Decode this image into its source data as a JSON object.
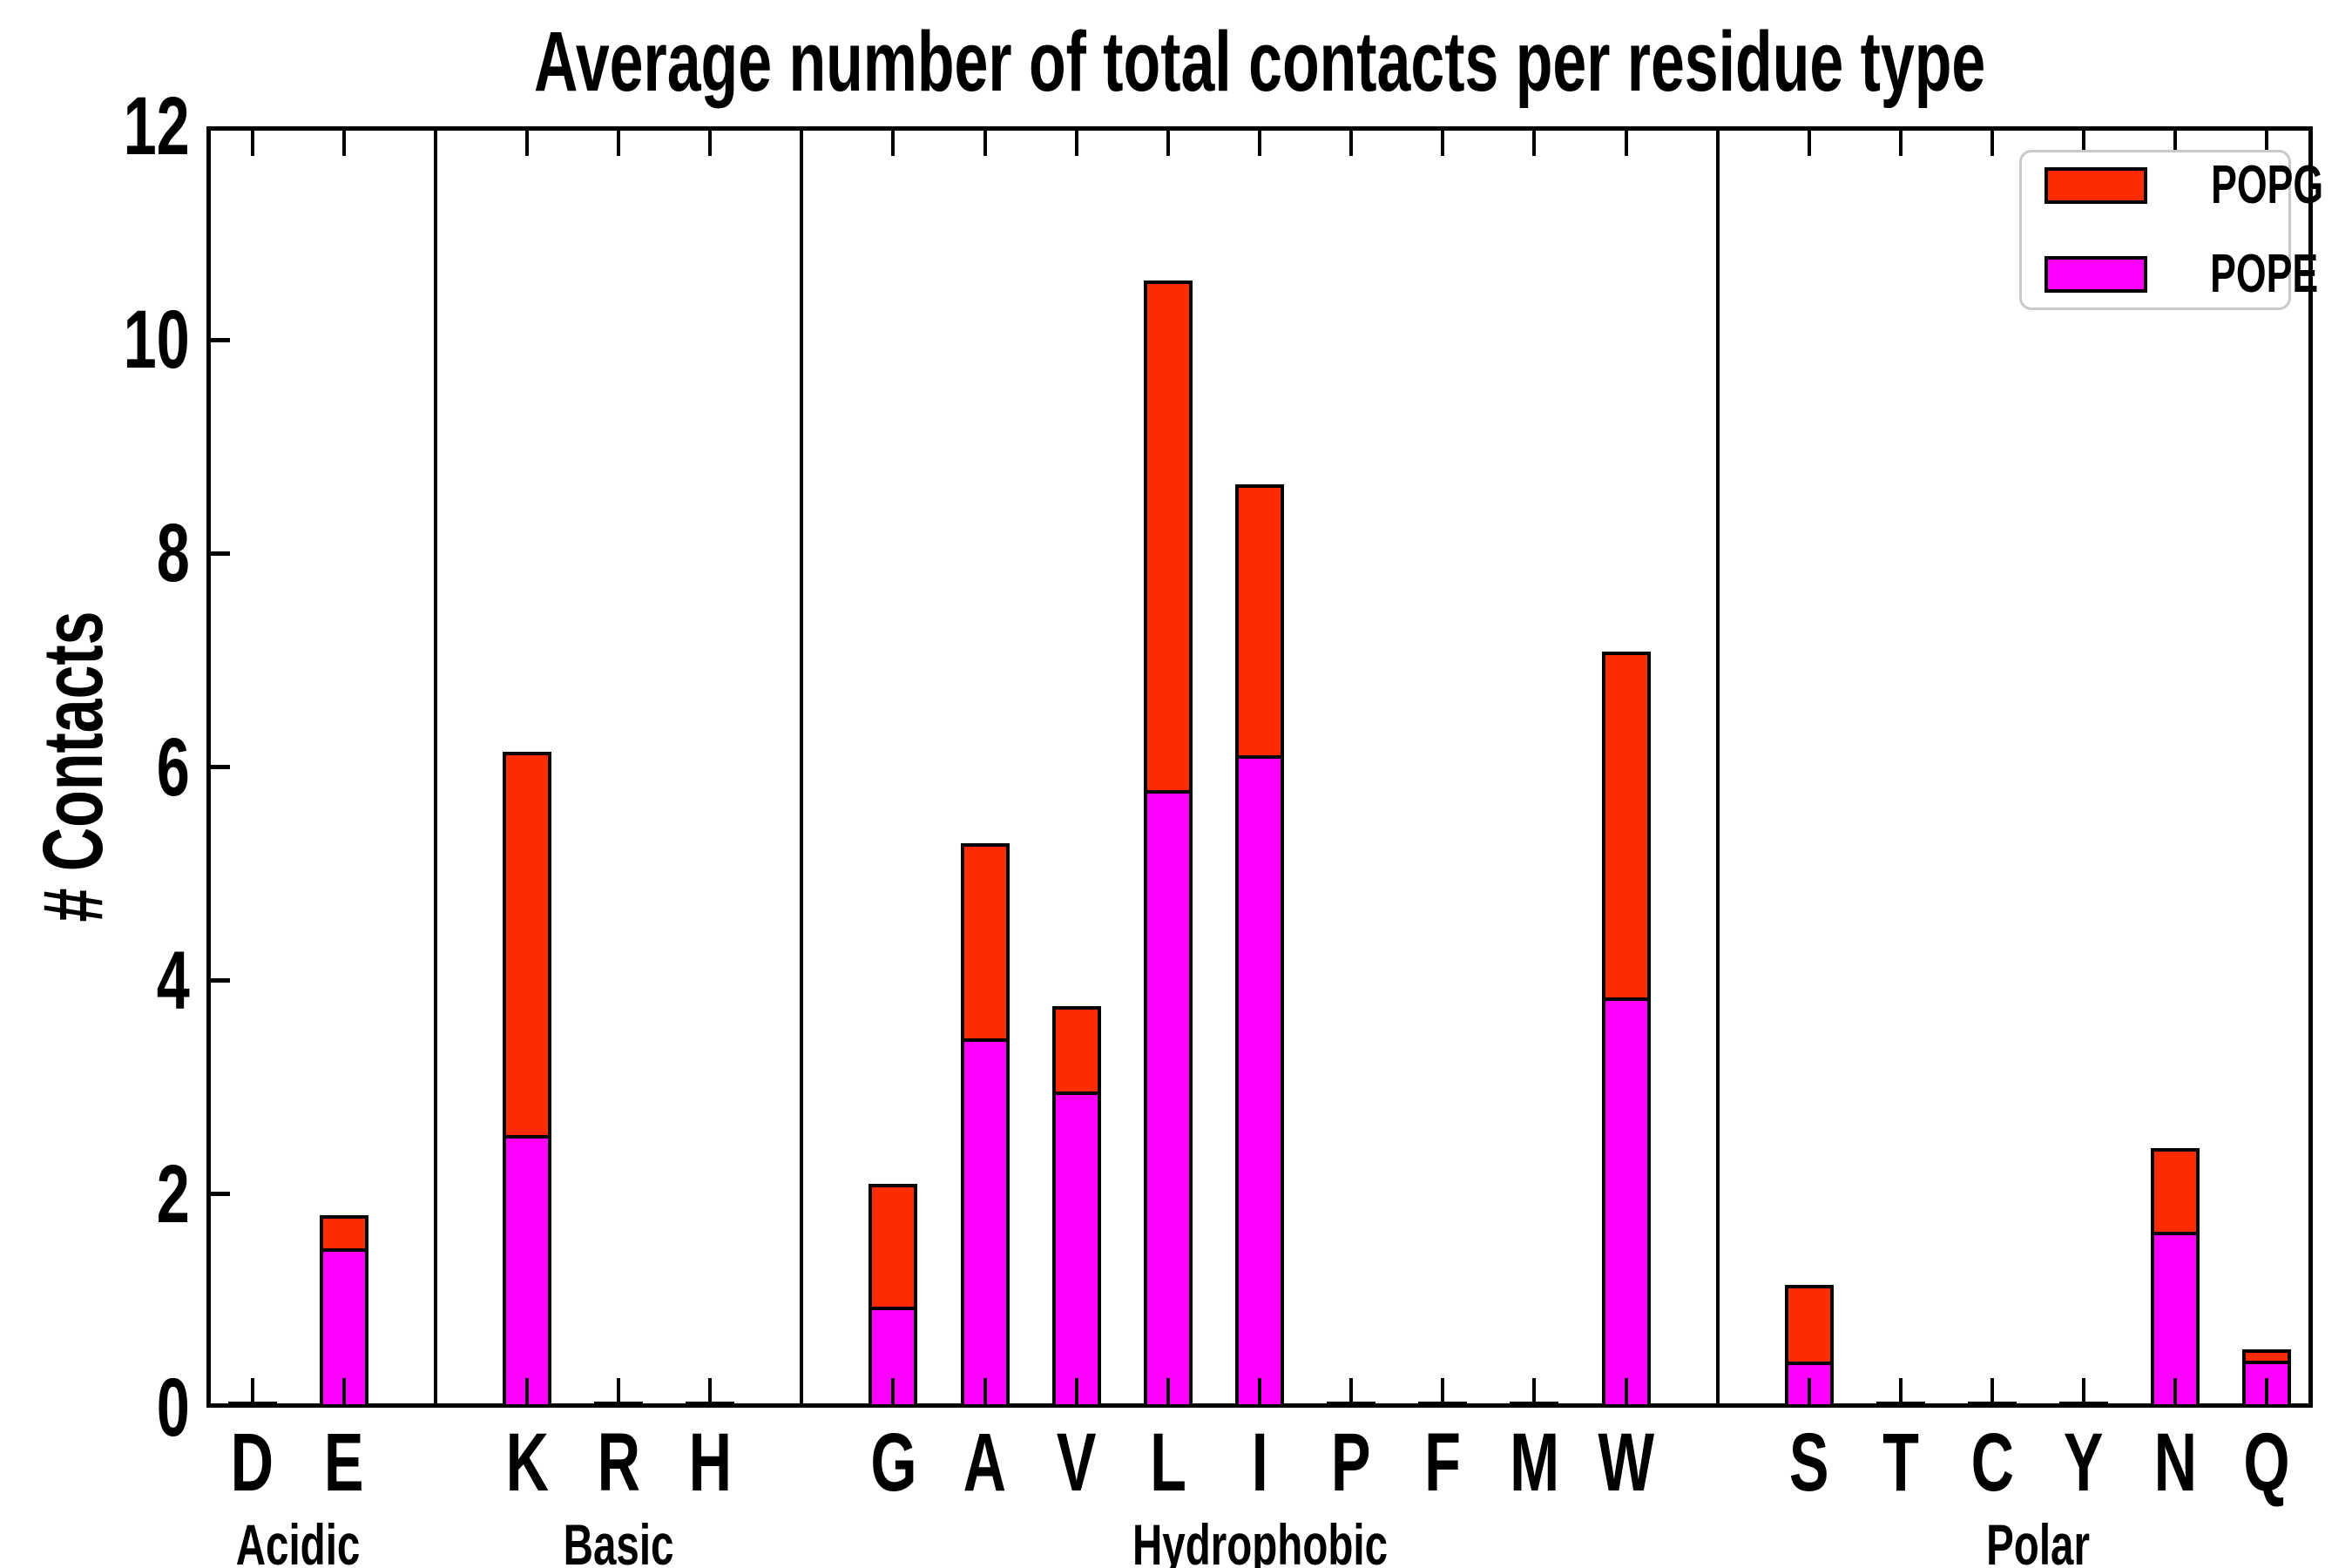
{
  "title": "Average number of total contacts per residue type",
  "ylabel": "# Contacts",
  "legend": {
    "entries": [
      {
        "label": "POPG",
        "color": "#ff2b00"
      },
      {
        "label": "POPE",
        "color": "#ff00ff"
      }
    ]
  },
  "chart_data": {
    "type": "bar",
    "stacked": true,
    "title": "Average number of total contacts per residue type",
    "xlabel": "",
    "ylabel": "# Contacts",
    "ylim": [
      0,
      12
    ],
    "yticks": [
      0,
      2,
      4,
      6,
      8,
      10,
      12
    ],
    "grid": false,
    "legend_position": "upper-right",
    "categories": [
      "D",
      "E",
      "K",
      "R",
      "H",
      "G",
      "A",
      "V",
      "L",
      "I",
      "P",
      "F",
      "M",
      "W",
      "S",
      "T",
      "C",
      "Y",
      "N",
      "Q"
    ],
    "groups": [
      {
        "label": "Acidic",
        "from": 0,
        "to": 1
      },
      {
        "label": "Basic",
        "from": 2,
        "to": 4
      },
      {
        "label": "Hydrophobic",
        "from": 5,
        "to": 13
      },
      {
        "label": "Polar",
        "from": 14,
        "to": 19
      }
    ],
    "series": [
      {
        "name": "POPE",
        "color": "#ff00ff",
        "values": [
          0.01,
          1.49,
          2.55,
          0.01,
          0.01,
          0.95,
          3.46,
          2.96,
          5.78,
          6.11,
          0.01,
          0.01,
          0.01,
          3.84,
          0.43,
          0.01,
          0.01,
          0.01,
          1.65,
          0.44
        ]
      },
      {
        "name": "POPG",
        "color": "#ff2b00",
        "values": [
          0.01,
          0.31,
          3.59,
          0.01,
          0.01,
          1.15,
          1.83,
          0.8,
          4.78,
          2.54,
          0.01,
          0.01,
          0.01,
          3.24,
          0.72,
          0.01,
          0.01,
          0.01,
          0.78,
          0.11
        ]
      }
    ],
    "totals": [
      0.02,
      1.8,
      6.14,
      0.02,
      0.02,
      2.1,
      5.29,
      3.76,
      10.56,
      8.65,
      0.02,
      0.02,
      0.02,
      7.08,
      1.15,
      0.02,
      0.02,
      0.02,
      2.43,
      0.55
    ]
  }
}
